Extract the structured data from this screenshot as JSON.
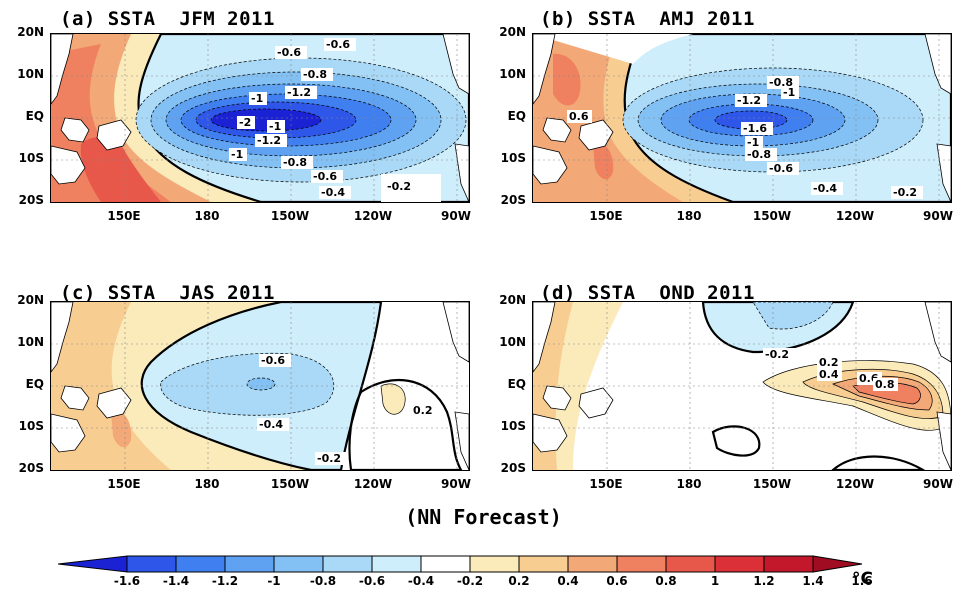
{
  "panels": [
    {
      "id": "a",
      "title": "(a) SSTA  JFM 2011",
      "labels": [
        "-0.6",
        "-0.6",
        "-0.8",
        "-1",
        "-1.2",
        "-1",
        "-2",
        "-1.2",
        "-1",
        "-0.8",
        "-0.6",
        "-0.4",
        "-0.2"
      ]
    },
    {
      "id": "b",
      "title": "(b) SSTA  AMJ 2011",
      "labels": [
        "0.6",
        "-0.8",
        "-1.2",
        "-1",
        "-1.6",
        "-1",
        "-0.8",
        "-0.6",
        "-0.4",
        "-0.2"
      ]
    },
    {
      "id": "c",
      "title": "(c) SSTA  JAS 2011",
      "labels": [
        "-0.6",
        "-0.4",
        "-0.2",
        "0.2"
      ]
    },
    {
      "id": "d",
      "title": "(d) SSTA  OND 2011",
      "labels": [
        "-0.2",
        "0.2",
        "0.4",
        "0.6",
        "0.8"
      ]
    }
  ],
  "lat_labels": [
    "20N",
    "10N",
    "EQ",
    "10S",
    "20S"
  ],
  "lon_labels": [
    "150E",
    "180",
    "150W",
    "120W",
    "90W"
  ],
  "subtitle": "(NN Forecast)",
  "colorbar": {
    "ticks": [
      "-1.6",
      "-1.4",
      "-1.2",
      "-1",
      "-0.8",
      "-0.6",
      "-0.4",
      "-0.2",
      "0.2",
      "0.4",
      "0.6",
      "0.8",
      "1",
      "1.2",
      "1.4",
      "1.6"
    ],
    "unit": "°C",
    "colors": [
      "#1a22d4",
      "#2e56e8",
      "#3f7ff0",
      "#5fa2f2",
      "#83c0f3",
      "#a9d9f6",
      "#cfeefb",
      "#ffffff",
      "#fbeaba",
      "#f8cd92",
      "#f3a877",
      "#ef8160",
      "#e8584a",
      "#dc3038",
      "#c3172c",
      "#a00c22"
    ]
  }
}
